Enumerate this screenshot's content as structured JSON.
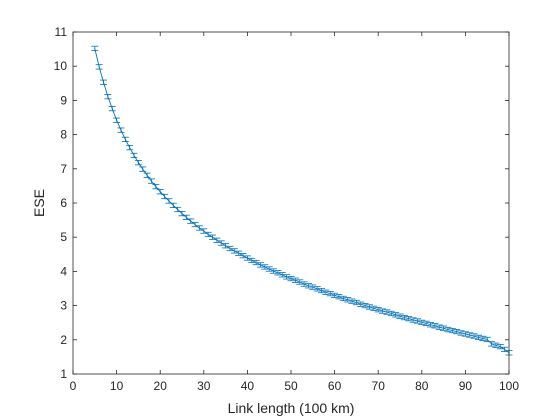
{
  "chart_data": {
    "type": "line",
    "title": "",
    "xlabel": "Link length (100 km)",
    "ylabel": "ESE",
    "xlim": [
      0,
      100
    ],
    "ylim": [
      1,
      11
    ],
    "xticks": [
      0,
      10,
      20,
      30,
      40,
      50,
      60,
      70,
      80,
      90,
      100
    ],
    "yticks": [
      1,
      2,
      3,
      4,
      5,
      6,
      7,
      8,
      9,
      10,
      11
    ],
    "grid": false,
    "box": true,
    "marker": "errorbar-caps",
    "series": [
      {
        "color": "#0072bd",
        "x": [
          5,
          6,
          7,
          8,
          9,
          10,
          11,
          12,
          13,
          14,
          15,
          16,
          17,
          18,
          19,
          20,
          21,
          22,
          23,
          24,
          25,
          26,
          27,
          28,
          29,
          30,
          31,
          32,
          33,
          34,
          35,
          36,
          37,
          38,
          39,
          40,
          41,
          42,
          43,
          44,
          45,
          46,
          47,
          48,
          49,
          50,
          51,
          52,
          53,
          54,
          55,
          56,
          57,
          58,
          59,
          60,
          61,
          62,
          63,
          64,
          65,
          66,
          67,
          68,
          69,
          70,
          71,
          72,
          73,
          74,
          75,
          76,
          77,
          78,
          79,
          80,
          81,
          82,
          83,
          84,
          85,
          86,
          87,
          88,
          89,
          90,
          91,
          92,
          93,
          94,
          95,
          96,
          97,
          98,
          99,
          100
        ],
        "y": [
          10.52,
          9.98,
          9.53,
          9.11,
          8.76,
          8.42,
          8.13,
          7.86,
          7.62,
          7.39,
          7.18,
          6.99,
          6.81,
          6.64,
          6.48,
          6.33,
          6.19,
          6.06,
          5.93,
          5.81,
          5.69,
          5.58,
          5.47,
          5.37,
          5.27,
          5.18,
          5.08,
          5.0,
          4.91,
          4.83,
          4.75,
          4.67,
          4.6,
          4.53,
          4.46,
          4.39,
          4.32,
          4.26,
          4.19,
          4.13,
          4.07,
          4.01,
          3.96,
          3.9,
          3.84,
          3.79,
          3.74,
          3.69,
          3.63,
          3.58,
          3.54,
          3.49,
          3.44,
          3.39,
          3.35,
          3.3,
          3.26,
          3.21,
          3.17,
          3.13,
          3.09,
          3.04,
          3.0,
          2.96,
          2.92,
          2.88,
          2.84,
          2.81,
          2.77,
          2.73,
          2.69,
          2.65,
          2.62,
          2.58,
          2.55,
          2.51,
          2.48,
          2.44,
          2.41,
          2.37,
          2.34,
          2.3,
          2.27,
          2.24,
          2.2,
          2.17,
          2.14,
          2.11,
          2.07,
          2.04,
          2.01,
          1.88,
          1.84,
          1.8,
          1.72,
          1.62
        ]
      }
    ]
  }
}
